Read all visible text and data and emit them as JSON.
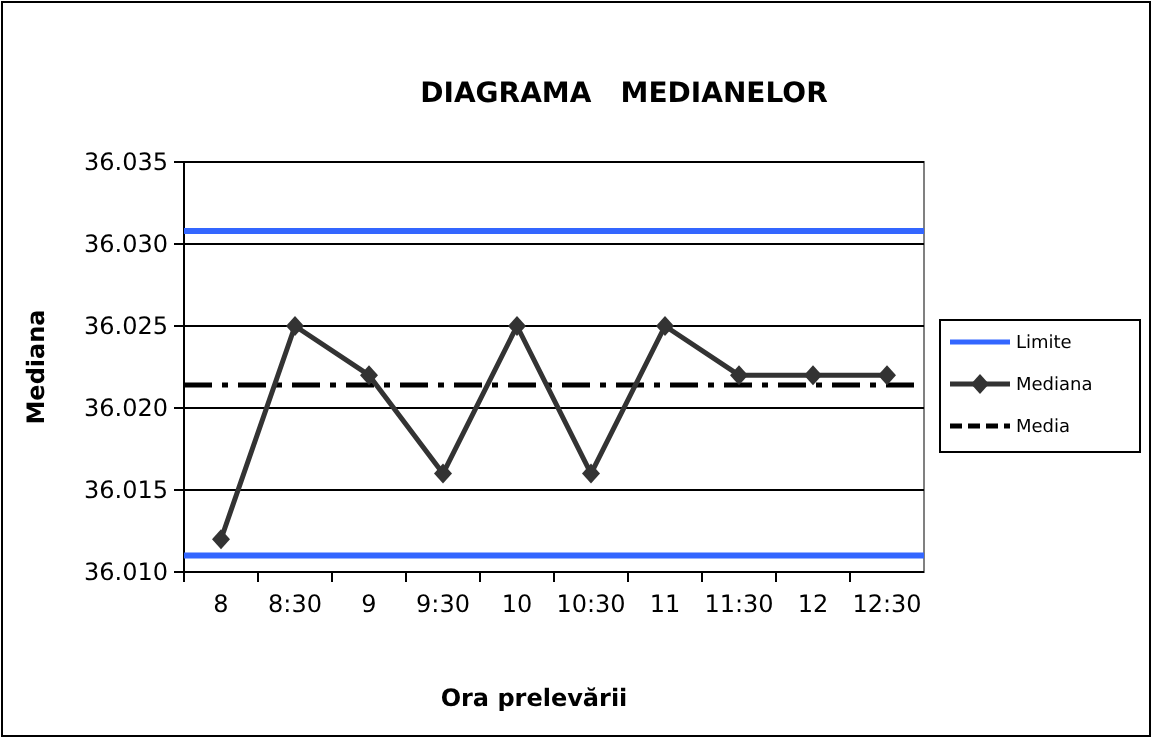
{
  "chart_data": {
    "type": "line",
    "title": "DIAGRAMA   MEDIANELOR",
    "xlabel": "Ora prelevării",
    "ylabel": "Mediana",
    "categories": [
      "8",
      "8:30",
      "9",
      "9:30",
      "10",
      "10:30",
      "11",
      "11:30",
      "12",
      "12:30"
    ],
    "series": [
      {
        "name": "Mediana",
        "color": "#333333",
        "values": [
          36.012,
          36.025,
          36.022,
          36.016,
          36.025,
          36.016,
          36.025,
          36.022,
          36.022,
          36.022
        ]
      }
    ],
    "ylim": [
      36.01,
      36.035
    ],
    "yticks": [
      {
        "value": 36.01,
        "label": "36.010"
      },
      {
        "value": 36.015,
        "label": "36.015"
      },
      {
        "value": 36.02,
        "label": "36.020"
      },
      {
        "value": 36.025,
        "label": "36.025"
      },
      {
        "value": 36.03,
        "label": "36.030"
      },
      {
        "value": 36.035,
        "label": "36.035"
      }
    ],
    "ref_lines": [
      {
        "axis": "y",
        "value": 36.0308,
        "label": "Limite",
        "color": "#3366ff",
        "line_style": "solid"
      },
      {
        "axis": "y",
        "value": 36.011,
        "color": "#3366ff",
        "line_style": "solid"
      },
      {
        "axis": "y",
        "value": 36.0214,
        "label": "Media",
        "color": "#000000",
        "line_style": "dashed"
      }
    ],
    "grid": "y",
    "legend": "right",
    "marker": "diamond",
    "line_style": "solid"
  }
}
